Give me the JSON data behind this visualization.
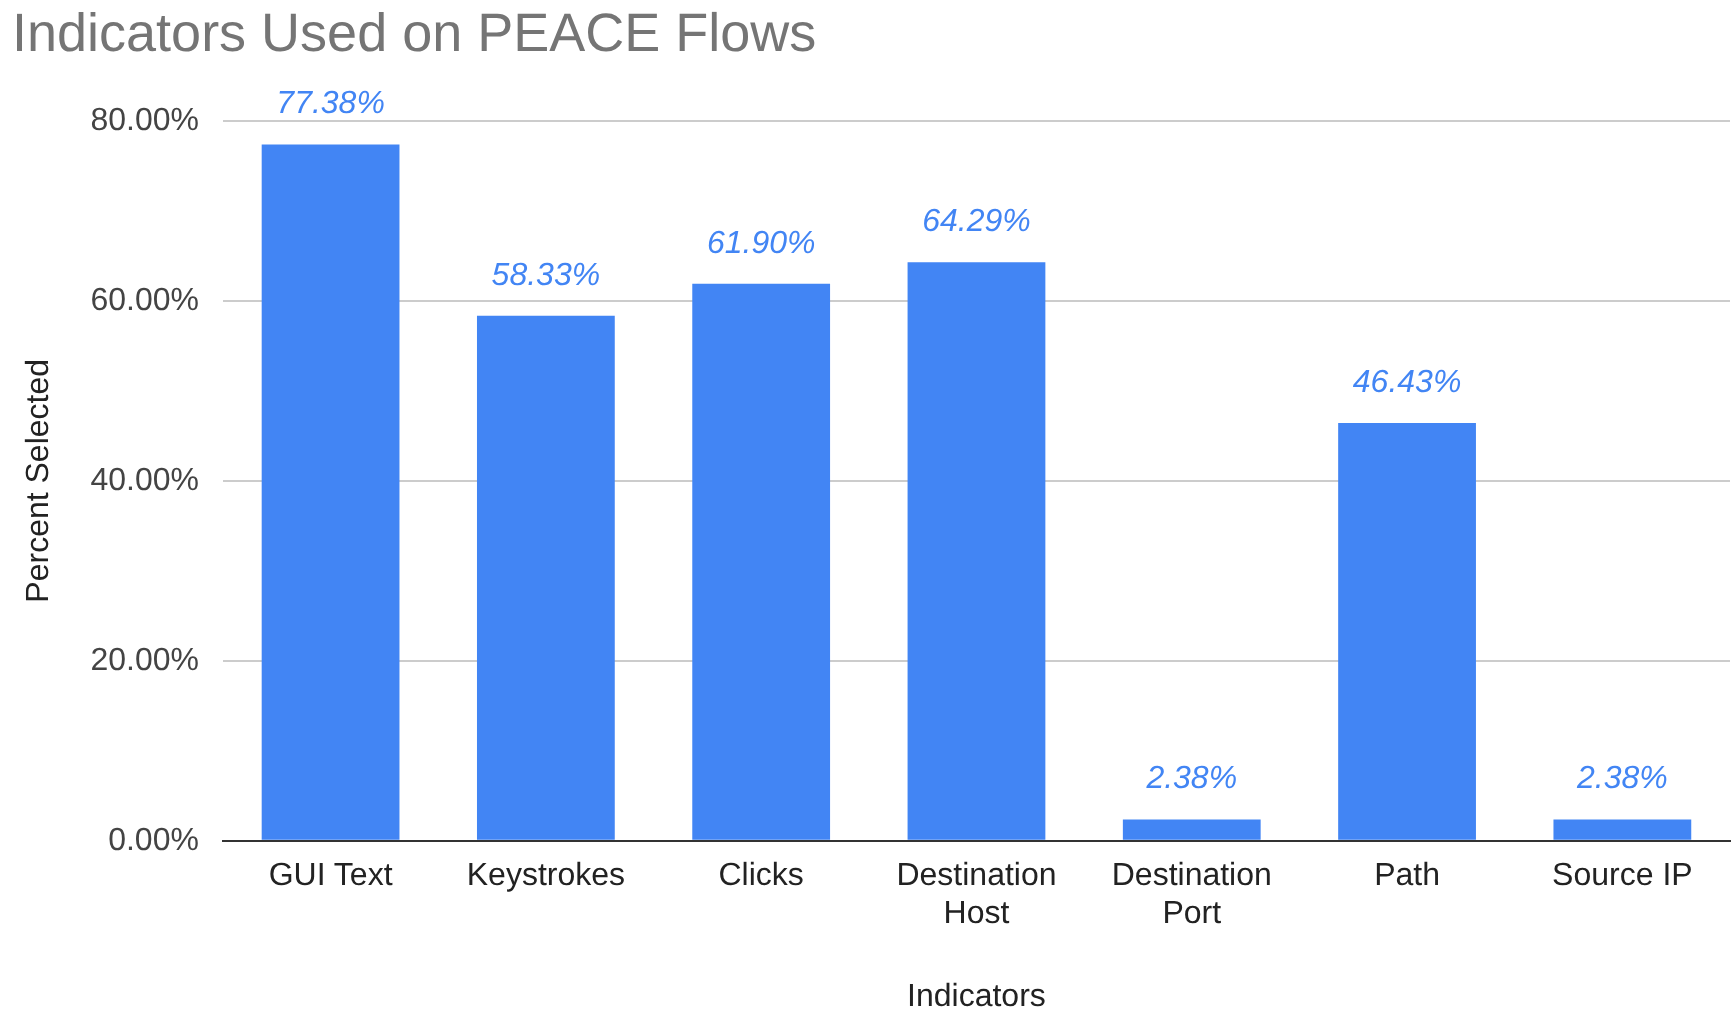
{
  "chart_data": {
    "type": "bar",
    "title": "Indicators Used on PEACE Flows",
    "xlabel": "Indicators",
    "ylabel": "Percent Selected",
    "categories": [
      "GUI Text",
      "Keystrokes",
      "Clicks",
      "Destination Host",
      "Destination Port",
      "Path",
      "Source IP"
    ],
    "values": [
      77.38,
      58.33,
      61.9,
      64.29,
      2.38,
      46.43,
      2.38
    ],
    "value_labels": [
      "77.38%",
      "58.33%",
      "61.90%",
      "64.29%",
      "2.38%",
      "46.43%",
      "2.38%"
    ],
    "color": "#4285f4",
    "ylim": [
      0,
      80
    ],
    "yticks": [
      {
        "value": 0,
        "label": "0.00%"
      },
      {
        "value": 20,
        "label": "20.00%"
      },
      {
        "value": 40,
        "label": "40.00%"
      },
      {
        "value": 60,
        "label": "60.00%"
      },
      {
        "value": 80,
        "label": "80.00%"
      }
    ],
    "grid": "y",
    "legend": false
  }
}
